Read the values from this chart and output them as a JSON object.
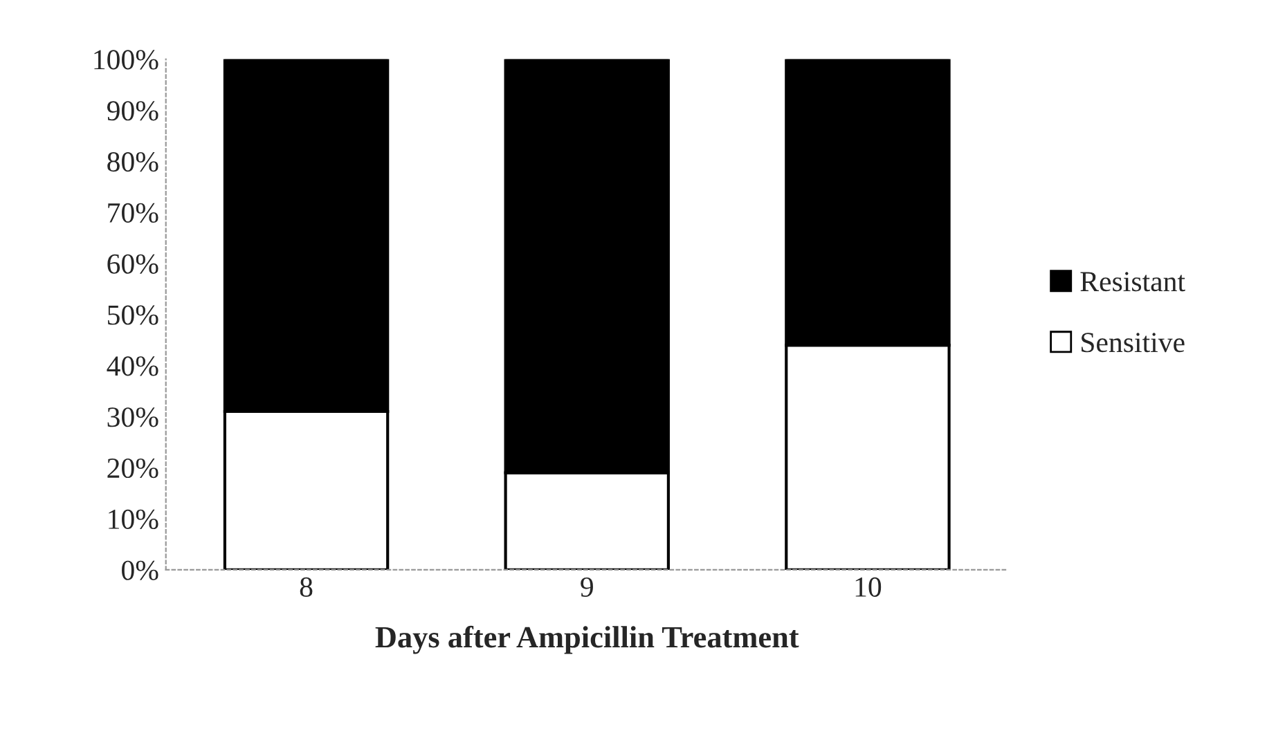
{
  "chart_data": {
    "type": "bar",
    "stacked": true,
    "xlabel": "Days after Ampicillin Treatment",
    "categories": [
      "8",
      "9",
      "10"
    ],
    "series": [
      {
        "name": "Sensitive",
        "color": "#ffffff",
        "values": [
          31,
          19,
          44
        ]
      },
      {
        "name": "Resistant",
        "color": "#000000",
        "values": [
          69,
          81,
          56
        ]
      }
    ],
    "ylim": [
      0,
      100
    ],
    "yticks": [
      {
        "value": 0,
        "label": "0%"
      },
      {
        "value": 10,
        "label": "10%"
      },
      {
        "value": 20,
        "label": "20%"
      },
      {
        "value": 30,
        "label": "30%"
      },
      {
        "value": 40,
        "label": "40%"
      },
      {
        "value": 50,
        "label": "50%"
      },
      {
        "value": 60,
        "label": "60%"
      },
      {
        "value": 70,
        "label": "70%"
      },
      {
        "value": 80,
        "label": "80%"
      },
      {
        "value": 90,
        "label": "90%"
      },
      {
        "value": 100,
        "label": "100%"
      }
    ],
    "grid": false,
    "legend": "right"
  }
}
